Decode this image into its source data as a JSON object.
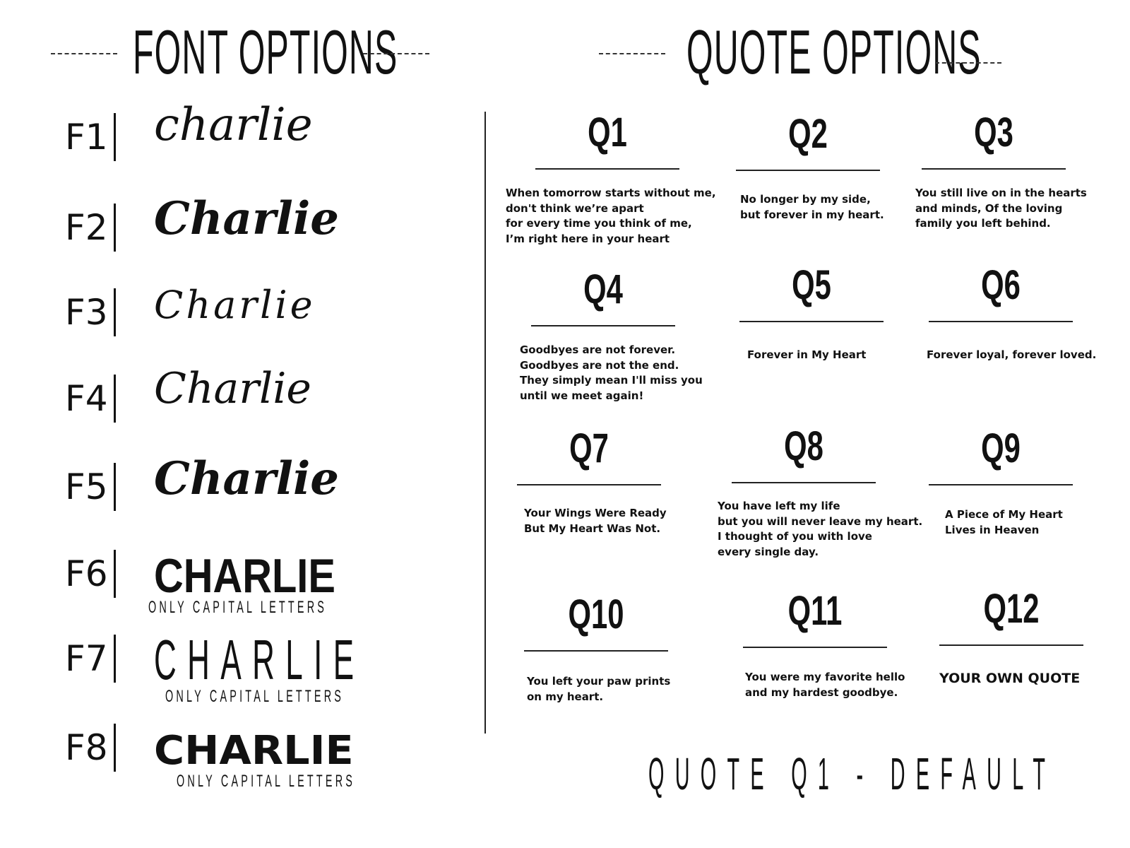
{
  "fonts": {
    "title": "FONT OPTIONS",
    "items": [
      {
        "label": "F1",
        "sample": "charlie"
      },
      {
        "label": "F2",
        "sample": "Charlie"
      },
      {
        "label": "F3",
        "sample": "Charlie"
      },
      {
        "label": "F4",
        "sample": "Charlie"
      },
      {
        "label": "F5",
        "sample": "Charlie"
      },
      {
        "label": "F6",
        "sample": "CHARLIE",
        "note": "ONLY CAPITAL LETTERS"
      },
      {
        "label": "F7",
        "sample": "CHARLIE",
        "note": "ONLY CAPITAL LETTERS"
      },
      {
        "label": "F8",
        "sample": "CHARLIE",
        "note": "ONLY CAPITAL LETTERS"
      }
    ]
  },
  "quotes": {
    "title": "QUOTE OPTIONS",
    "items": [
      {
        "label": "Q1",
        "text": "When tomorrow starts without me,\ndon't think we’re apart\nfor every time you think of me,\nI’m right here in your heart"
      },
      {
        "label": "Q2",
        "text": "No longer by my side,\nbut forever in my heart."
      },
      {
        "label": "Q3",
        "text": "You still live on in the hearts\nand minds, Of the loving\nfamily you left behind."
      },
      {
        "label": "Q4",
        "text": "Goodbyes are not forever.\nGoodbyes are not the end.\nThey simply mean I'll miss you\nuntil we meet again!"
      },
      {
        "label": "Q5",
        "text": "Forever in My Heart"
      },
      {
        "label": "Q6",
        "text": "Forever loyal, forever loved."
      },
      {
        "label": "Q7",
        "text": "Your Wings Were Ready\nBut My Heart Was Not."
      },
      {
        "label": "Q8",
        "text": "You have left my life\nbut you will never leave my heart.\nI thought of you with love\nevery single day."
      },
      {
        "label": "Q9",
        "text": "A Piece of My Heart\nLives in Heaven"
      },
      {
        "label": "Q10",
        "text": "You left your paw prints\non my heart."
      },
      {
        "label": "Q11",
        "text": "You were my favorite hello\nand my hardest goodbye."
      },
      {
        "label": "Q12",
        "text": "YOUR OWN QUOTE"
      }
    ],
    "footer": "QUOTE Q1 - DEFAULT"
  }
}
